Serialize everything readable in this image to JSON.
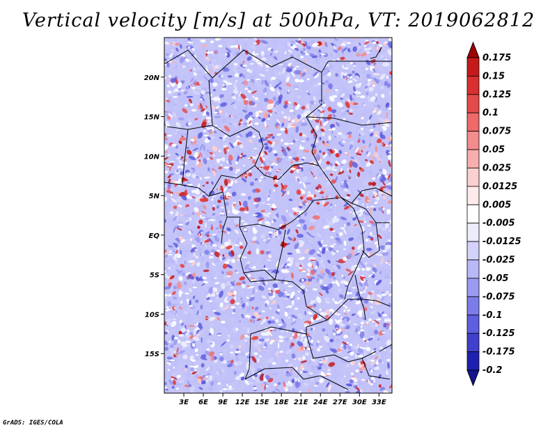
{
  "title": "Vertical velocity [m/s] at 500hPa, VT: 2019062812",
  "credit": "GrADS: IGES/COLA",
  "map": {
    "lon_range": [
      0,
      35
    ],
    "lat_range": [
      -20,
      25
    ],
    "lat_ticks": [
      {
        "value": 20,
        "label": "20N"
      },
      {
        "value": 15,
        "label": "15N"
      },
      {
        "value": 10,
        "label": "10N"
      },
      {
        "value": 5,
        "label": "5N"
      },
      {
        "value": 0,
        "label": "EQ"
      },
      {
        "value": -5,
        "label": "5S"
      },
      {
        "value": -10,
        "label": "10S"
      },
      {
        "value": -15,
        "label": "15S"
      }
    ],
    "lon_ticks": [
      {
        "value": 3,
        "label": "3E"
      },
      {
        "value": 6,
        "label": "6E"
      },
      {
        "value": 9,
        "label": "9E"
      },
      {
        "value": 12,
        "label": "12E"
      },
      {
        "value": 15,
        "label": "15E"
      },
      {
        "value": 18,
        "label": "18E"
      },
      {
        "value": 21,
        "label": "21E"
      },
      {
        "value": 24,
        "label": "24E"
      },
      {
        "value": 27,
        "label": "27E"
      },
      {
        "value": 30,
        "label": "30E"
      },
      {
        "value": 33,
        "label": "33E"
      }
    ]
  },
  "colorbar": {
    "labels": [
      "0.175",
      "0.15",
      "0.125",
      "0.1",
      "0.075",
      "0.05",
      "0.025",
      "0.0125",
      "0.005",
      "-0.005",
      "-0.0125",
      "-0.025",
      "-0.05",
      "-0.075",
      "-0.1",
      "-0.125",
      "-0.175",
      "-0.2"
    ],
    "colors": [
      "#a00000",
      "#c41a1a",
      "#d83030",
      "#e54a4a",
      "#ee6a6a",
      "#f38c8c",
      "#f7aeae",
      "#fbd0d0",
      "#fdeaea",
      "#ffffff",
      "#ececfd",
      "#d2d2fb",
      "#b8b8f7",
      "#9a9af1",
      "#7c7ce9",
      "#5e5ede",
      "#4040cc",
      "#2020b0",
      "#14148f"
    ]
  }
}
